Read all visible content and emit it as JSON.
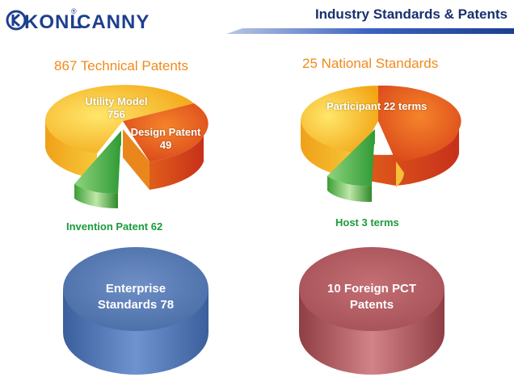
{
  "header": {
    "logo_text": "CANNY",
    "logo_mark": "KONL",
    "registered": "®",
    "title": "Industry Standards & Patents"
  },
  "patents": {
    "title": "867 Technical Patents",
    "utility_model": {
      "name": "Utility Model",
      "count": "756"
    },
    "design_patent": {
      "name": "Design Patent",
      "count": "49"
    },
    "invention_patent": "Invention Patent  62"
  },
  "standards": {
    "title": "25 National Standards",
    "participant": "Participant 22 terms",
    "host": "Host 3 terms"
  },
  "enterprise": {
    "line1": "Enterprise",
    "line2": "Standards 78"
  },
  "foreign": {
    "line1": "10 Foreign PCT",
    "line2": "Patents"
  },
  "colors": {
    "brand": "#1d3f8f",
    "accent_orange": "#f08a1c",
    "green": "#1a9b3c",
    "blue_cylinder": "#5b7fb8",
    "red_cylinder": "#b45c62"
  }
}
